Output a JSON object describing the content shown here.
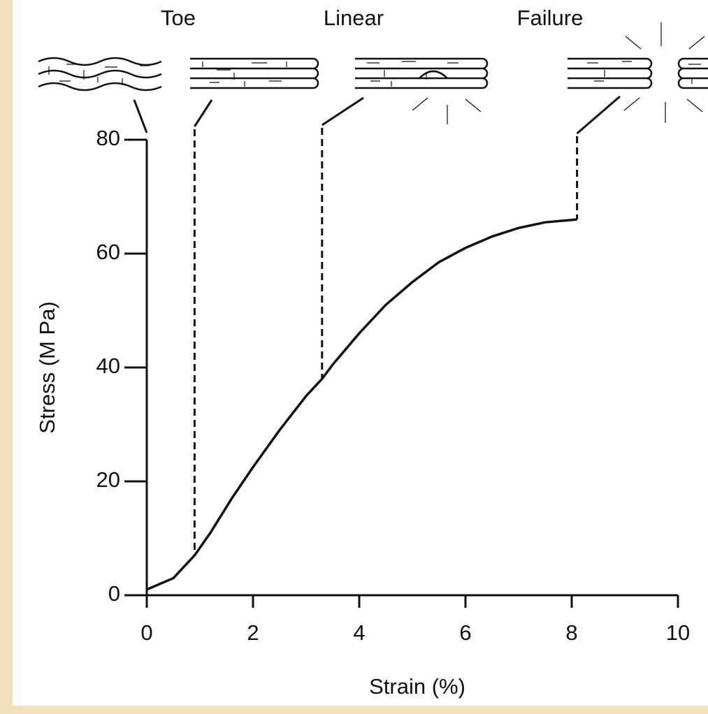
{
  "chart_data": {
    "type": "line",
    "x_label": "Strain (%)",
    "y_label": "Stress (M Pa)",
    "annotations": [
      "Toe",
      "Linear",
      "Failure"
    ],
    "phase_boundaries": [
      0.9,
      3.3,
      8.1
    ],
    "x": [
      0,
      0.5,
      0.9,
      1.2,
      1.6,
      2,
      2.5,
      3,
      3.3,
      3.5,
      4,
      4.5,
      5,
      5.5,
      6,
      6.5,
      7,
      7.5,
      8.1
    ],
    "values": [
      1,
      3,
      7,
      11,
      17,
      22.5,
      29,
      35,
      38,
      40.5,
      46,
      51,
      55,
      58.5,
      61,
      63,
      64.5,
      65.5,
      66
    ],
    "color": "#111111",
    "xlim": [
      0,
      10
    ],
    "xticks": [
      0,
      2,
      4,
      6,
      8,
      10
    ],
    "ylim": [
      0,
      80
    ],
    "yticks": [
      0,
      20,
      40,
      60,
      80
    ]
  }
}
